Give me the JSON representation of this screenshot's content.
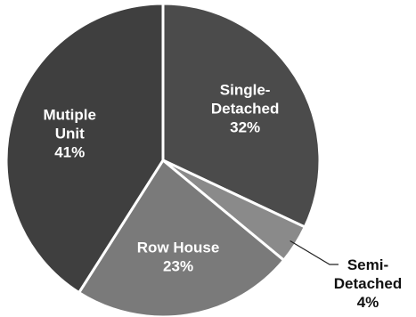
{
  "chart_data": {
    "type": "pie",
    "title": "",
    "slices": [
      {
        "label_lines": [
          "Single-",
          "Detached"
        ],
        "percent_label": "32%",
        "value": 32,
        "color": "#4b4b4b",
        "label_position": "inside"
      },
      {
        "label_lines": [
          "Semi-",
          "Detached"
        ],
        "percent_label": "4%",
        "value": 4,
        "color": "#8a8a8a",
        "label_position": "outside"
      },
      {
        "label_lines": [
          "Row House"
        ],
        "percent_label": "23%",
        "value": 23,
        "color": "#7a7a7a",
        "label_position": "inside"
      },
      {
        "label_lines": [
          "Mutiple",
          "Unit"
        ],
        "percent_label": "41%",
        "value": 41,
        "color": "#3f3f3f",
        "label_position": "inside"
      }
    ],
    "legend": "none",
    "data_labels": "category and percentage"
  }
}
